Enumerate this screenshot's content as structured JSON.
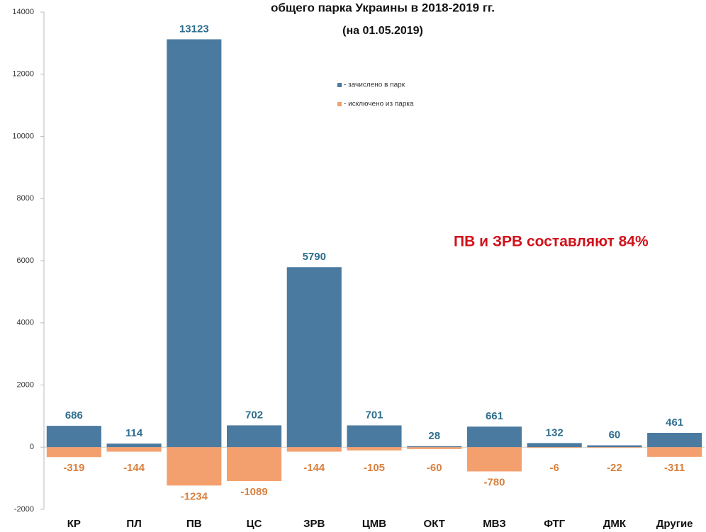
{
  "chart_data": {
    "type": "bar",
    "title": "общего парка Украины в 2018-2019 гг.",
    "subtitle": "(на 01.05.2019)",
    "annotation": "ПВ и ЗРВ составляют 84%",
    "categories": [
      "КР",
      "ПЛ",
      "ПВ",
      "ЦС",
      "ЗРВ",
      "ЦМВ",
      "ОКТ",
      "МВЗ",
      "ФТГ",
      "ДМК",
      "Другие"
    ],
    "series": [
      {
        "name": "- зачислено в парк",
        "color": "#4a7aa0",
        "values": [
          686,
          114,
          13123,
          702,
          5790,
          701,
          28,
          661,
          132,
          60,
          461
        ]
      },
      {
        "name": "- исключено из парка",
        "color": "#f4a06e",
        "values": [
          -319,
          -144,
          -1234,
          -1089,
          -144,
          -105,
          -60,
          -780,
          -6,
          -22,
          -311
        ]
      }
    ],
    "ylim": [
      -2000,
      14000
    ],
    "yticks": [
      -2000,
      0,
      2000,
      4000,
      6000,
      8000,
      10000,
      12000,
      14000
    ]
  }
}
